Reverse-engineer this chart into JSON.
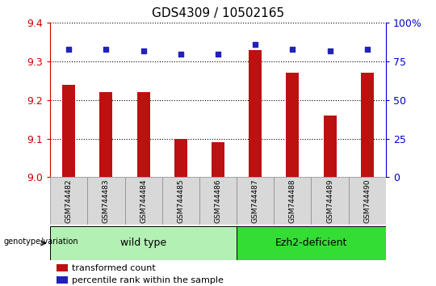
{
  "title": "GDS4309 / 10502165",
  "samples": [
    "GSM744482",
    "GSM744483",
    "GSM744484",
    "GSM744485",
    "GSM744486",
    "GSM744487",
    "GSM744488",
    "GSM744489",
    "GSM744490"
  ],
  "bar_values": [
    9.24,
    9.22,
    9.22,
    9.1,
    9.09,
    9.33,
    9.27,
    9.16,
    9.27
  ],
  "dot_values": [
    83,
    83,
    82,
    80,
    80,
    86,
    83,
    82,
    83
  ],
  "ylim_left": [
    9.0,
    9.4
  ],
  "ylim_right": [
    0,
    100
  ],
  "yticks_left": [
    9.0,
    9.1,
    9.2,
    9.3,
    9.4
  ],
  "yticks_right": [
    0,
    25,
    50,
    75,
    100
  ],
  "bar_color": "#bb1111",
  "dot_color": "#2222bb",
  "grid_color": "#000000",
  "axis_color_left": "#cc0000",
  "axis_color_right": "#0000cc",
  "group1_label": "wild type",
  "group2_label": "Ezh2-deficient",
  "group1_indices": [
    0,
    1,
    2,
    3,
    4
  ],
  "group2_indices": [
    5,
    6,
    7,
    8
  ],
  "group1_color": "#b3f0b3",
  "group2_color": "#33dd33",
  "genotype_label": "genotype/variation",
  "legend_bar_label": "transformed count",
  "legend_dot_label": "percentile rank within the sample",
  "bar_width": 0.35,
  "bg_color": "#ffffff",
  "sample_bg_color": "#d8d8d8"
}
